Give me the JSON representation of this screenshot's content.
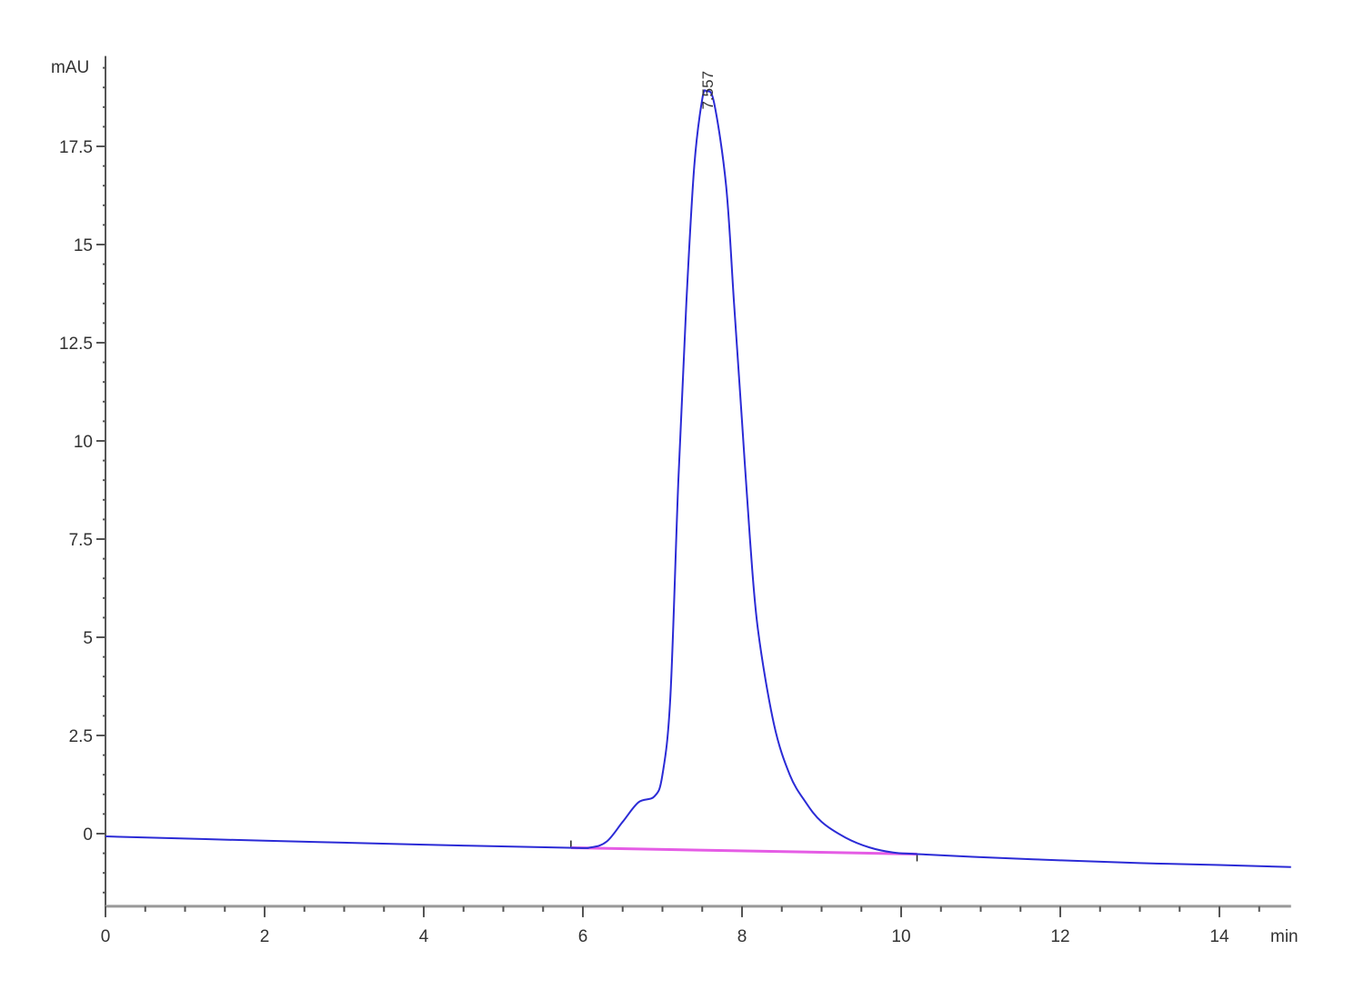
{
  "chart_data": {
    "type": "line",
    "title": "",
    "xlabel": "min",
    "ylabel": "mAU",
    "xlim": [
      0,
      14.9
    ],
    "ylim": [
      -1.85,
      19.8
    ],
    "x_ticks": [
      0,
      2,
      4,
      6,
      8,
      10,
      12,
      14
    ],
    "x_tick_labels": [
      "0",
      "2",
      "4",
      "6",
      "8",
      "10",
      "12",
      "14"
    ],
    "y_ticks": [
      0,
      2.5,
      5,
      7.5,
      10,
      12.5,
      15,
      17.5
    ],
    "y_tick_labels": [
      "0",
      "2.5",
      "5",
      "7.5",
      "10",
      "12.5",
      "15",
      "17.5"
    ],
    "grid": false,
    "colors": {
      "signal": "#2b2bd6",
      "baseline": "#e040e0",
      "axis": "#555555"
    },
    "series": [
      {
        "x": [
          0,
          2,
          4,
          5.8,
          6.1,
          6.3,
          6.5,
          6.7,
          6.9,
          7.0,
          7.1,
          7.2,
          7.3,
          7.4,
          7.5,
          7.557,
          7.65,
          7.8,
          7.9,
          8.0,
          8.1,
          8.2,
          8.4,
          8.6,
          8.8,
          9.0,
          9.3,
          9.6,
          9.9,
          10.2,
          11,
          12,
          13,
          14,
          14.9
        ],
        "y": [
          -0.07,
          -0.18,
          -0.28,
          -0.36,
          -0.35,
          -0.2,
          0.3,
          0.8,
          0.95,
          1.5,
          3.5,
          9,
          13.5,
          17,
          18.7,
          18.9,
          18.6,
          16.5,
          13.5,
          10.5,
          7.5,
          5.2,
          2.8,
          1.5,
          0.8,
          0.3,
          -0.1,
          -0.35,
          -0.48,
          -0.52,
          -0.6,
          -0.68,
          -0.75,
          -0.8,
          -0.85
        ]
      }
    ],
    "integration_baseline": {
      "x": [
        5.85,
        10.2
      ],
      "y": [
        -0.36,
        -0.52
      ]
    },
    "annotations": [
      {
        "x": 7.557,
        "y": 18.9,
        "text": "7.557"
      }
    ]
  }
}
